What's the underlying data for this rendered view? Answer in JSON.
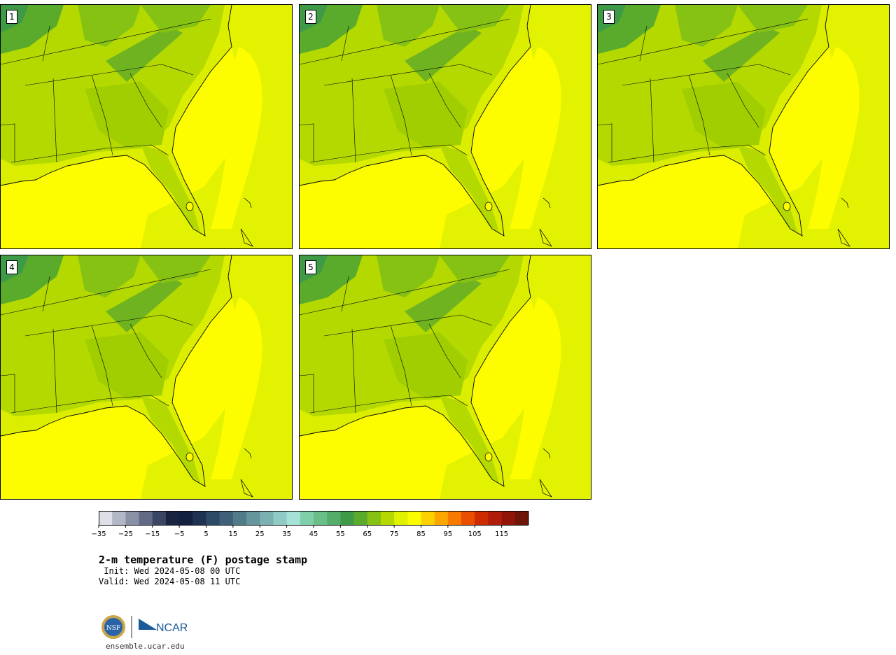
{
  "panels": [
    {
      "id": "1"
    },
    {
      "id": "2"
    },
    {
      "id": "3"
    },
    {
      "id": "4"
    },
    {
      "id": "5"
    }
  ],
  "colorbar": {
    "colors": [
      "#dde0e6",
      "#b3b8c7",
      "#8a91a6",
      "#626a86",
      "#3b4564",
      "#1a2440",
      "#142040",
      "#1f3252",
      "#2c4a66",
      "#3f6178",
      "#527b8a",
      "#66959d",
      "#7bb0b0",
      "#91cac4",
      "#a4e2d8",
      "#80cfab",
      "#6abe88",
      "#55ad6a",
      "#3f9a48",
      "#5aab2c",
      "#86c214",
      "#b5d900",
      "#dff200",
      "#fcfc00",
      "#fcd100",
      "#fca700",
      "#f87a00",
      "#ea4e00",
      "#cc2c00",
      "#b01c08",
      "#901408",
      "#6e1408"
    ],
    "ticks": [
      "−35",
      "−25",
      "−15",
      "−5",
      "5",
      "15",
      "25",
      "35",
      "45",
      "55",
      "65",
      "75",
      "85",
      "95",
      "105",
      "115"
    ],
    "min": -35,
    "max": 125,
    "step": 5
  },
  "title": "2-m temperature (F) postage stamp",
  "init": " Init: Wed 2024-05-08 00 UTC",
  "valid": "Valid: Wed 2024-05-08 11 UTC",
  "logo": {
    "nsf": "NSF",
    "ncar": "NCAR"
  },
  "url": "ensemble.ucar.edu"
}
